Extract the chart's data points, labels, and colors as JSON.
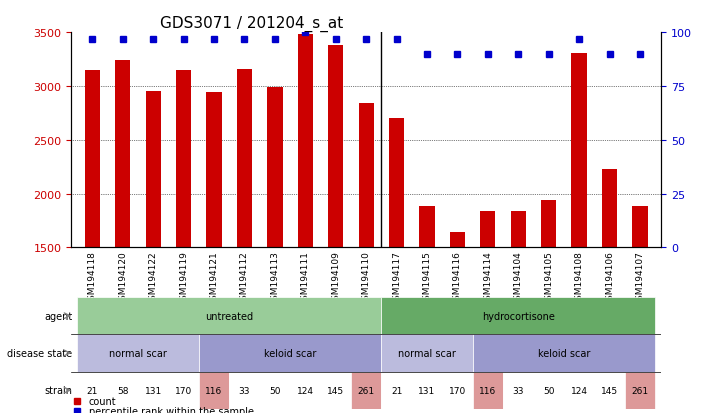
{
  "title": "GDS3071 / 201204_s_at",
  "samples": [
    "GSM194118",
    "GSM194120",
    "GSM194122",
    "GSM194119",
    "GSM194121",
    "GSM194112",
    "GSM194113",
    "GSM194111",
    "GSM194109",
    "GSM194110",
    "GSM194117",
    "GSM194115",
    "GSM194116",
    "GSM194114",
    "GSM194104",
    "GSM194105",
    "GSM194108",
    "GSM194106",
    "GSM194107"
  ],
  "counts": [
    3150,
    3240,
    2950,
    3150,
    2940,
    3160,
    2990,
    3480,
    3380,
    2840,
    2700,
    1880,
    1640,
    1840,
    1840,
    1940,
    3310,
    2230,
    1880
  ],
  "percentiles": [
    97,
    97,
    97,
    97,
    97,
    97,
    97,
    100,
    97,
    97,
    97,
    90,
    90,
    90,
    90,
    90,
    97,
    90,
    90
  ],
  "ylim_left": [
    1500,
    3500
  ],
  "ylim_right": [
    0,
    100
  ],
  "bar_color": "#cc0000",
  "dot_color": "#0000cc",
  "agent_groups": [
    {
      "label": "untreated",
      "start": 0,
      "end": 9,
      "color": "#99cc99"
    },
    {
      "label": "hydrocortisone",
      "start": 10,
      "end": 18,
      "color": "#66aa66"
    }
  ],
  "disease_groups": [
    {
      "label": "normal scar",
      "start": 0,
      "end": 3,
      "color": "#bbbbdd"
    },
    {
      "label": "keloid scar",
      "start": 4,
      "end": 9,
      "color": "#9999cc"
    },
    {
      "label": "normal scar",
      "start": 10,
      "end": 12,
      "color": "#bbbbdd"
    },
    {
      "label": "keloid scar",
      "start": 13,
      "end": 18,
      "color": "#9999cc"
    }
  ],
  "strains": [
    21,
    58,
    131,
    170,
    116,
    33,
    50,
    124,
    145,
    261,
    21,
    131,
    170,
    116,
    33,
    50,
    124,
    145,
    261
  ],
  "strain_highlight": [
    116,
    261
  ],
  "strain_highlight_color": "#dd9999",
  "strain_normal_color": "#ffffff",
  "row_labels": [
    "agent",
    "disease state",
    "strain"
  ],
  "legend_items": [
    {
      "label": "count",
      "color": "#cc0000",
      "marker": "s"
    },
    {
      "label": "percentile rank within the sample",
      "color": "#0000cc",
      "marker": "s"
    }
  ]
}
